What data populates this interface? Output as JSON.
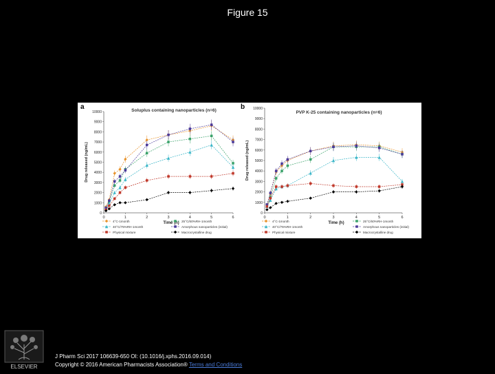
{
  "page": {
    "title": "Figure 15",
    "citation": "J Pharm Sci 2017 106639-650 OI: (10.1016/j.xphs.2016.09.014)",
    "copyright": "Copyright © 2016 American Pharmacists Association®",
    "terms_link": "Terms and Conditions",
    "publisher": "ELSEVIER"
  },
  "colors": {
    "orange": "#e8922a",
    "green": "#3aa26a",
    "teal": "#3ab6c8",
    "purple": "#4b3a9a",
    "red": "#c0392b",
    "black": "#000000"
  },
  "chart_data": [
    {
      "type": "line",
      "panel_label": "a",
      "title": "Soluplus containing nanoparticles (n=6)",
      "xlabel": "Time (h)",
      "ylabel": "Drug released (ng/mL)",
      "xlim": [
        0,
        6
      ],
      "ylim": [
        0,
        10000
      ],
      "xticks": [
        0,
        1,
        2,
        3,
        4,
        5,
        6
      ],
      "yticks": [
        0,
        1000,
        2000,
        3000,
        4000,
        5000,
        6000,
        7000,
        8000,
        9000,
        10000
      ],
      "x": [
        0.1,
        0.25,
        0.5,
        0.75,
        1,
        2,
        3,
        4,
        5,
        6
      ],
      "grid": false,
      "legend": "bottom",
      "series": [
        {
          "name": "4°C-1month",
          "color": "#e8922a",
          "marker": "diamond",
          "values": [
            600,
            1300,
            3900,
            4300,
            5300,
            7200,
            7700,
            8100,
            8600,
            7200
          ]
        },
        {
          "name": "25°C/60%RH-1month",
          "color": "#3aa26a",
          "marker": "square",
          "values": [
            500,
            1100,
            2700,
            3200,
            4300,
            5900,
            7000,
            7300,
            7600,
            4900
          ]
        },
        {
          "name": "40°C/75%RH-1month",
          "color": "#3ab6c8",
          "marker": "triangle",
          "values": [
            400,
            900,
            2000,
            2500,
            3300,
            4700,
            5400,
            6000,
            6700,
            4500
          ]
        },
        {
          "name": "Amorphous nanoparticles (initial)",
          "color": "#4b3a9a",
          "marker": "square",
          "values": [
            500,
            1200,
            3100,
            3600,
            4200,
            6700,
            7700,
            8300,
            8700,
            7000
          ]
        },
        {
          "name": "Physical mixture",
          "color": "#c0392b",
          "marker": "square",
          "values": [
            300,
            700,
            1400,
            2000,
            2500,
            3200,
            3600,
            3600,
            3600,
            3900
          ]
        },
        {
          "name": "Macrocrystalline drug",
          "color": "#000000",
          "marker": "diamond",
          "values": [
            200,
            400,
            800,
            1000,
            1000,
            1300,
            2000,
            2000,
            2200,
            2400
          ]
        }
      ]
    },
    {
      "type": "line",
      "panel_label": "b",
      "title": "PVP K-25 containing nanoparticles (n=6)",
      "xlabel": "Time (h)",
      "ylabel": "Drug released (ng/mL)",
      "xlim": [
        0,
        6
      ],
      "ylim": [
        0,
        10000
      ],
      "xticks": [
        0,
        1,
        2,
        3,
        4,
        5,
        6
      ],
      "yticks": [
        0,
        1000,
        2000,
        3000,
        4000,
        5000,
        6000,
        7000,
        8000,
        9000,
        10000
      ],
      "x": [
        0.1,
        0.25,
        0.5,
        0.75,
        1,
        2,
        3,
        4,
        5,
        6
      ],
      "grid": false,
      "legend": "bottom",
      "series": [
        {
          "name": "4°C-1month",
          "color": "#e8922a",
          "marker": "diamond",
          "values": [
            800,
            1800,
            3900,
            4500,
            5000,
            5900,
            6400,
            6500,
            6400,
            5800
          ]
        },
        {
          "name": "25°C/60%RH-1month",
          "color": "#3aa26a",
          "marker": "square",
          "values": [
            700,
            1500,
            3300,
            4000,
            4500,
            5100,
            6300,
            6300,
            6300,
            5600
          ]
        },
        {
          "name": "40°C/75%RH-1month",
          "color": "#3ab6c8",
          "marker": "triangle",
          "values": [
            600,
            1200,
            2300,
            2500,
            2600,
            3800,
            5000,
            5300,
            5300,
            3000
          ]
        },
        {
          "name": "Amorphous nanoparticles (initial)",
          "color": "#4b3a9a",
          "marker": "square",
          "values": [
            800,
            1900,
            4000,
            4700,
            5100,
            5900,
            6300,
            6400,
            6200,
            5600
          ]
        },
        {
          "name": "Physical mixture",
          "color": "#c0392b",
          "marker": "square",
          "values": [
            600,
            1400,
            2500,
            2500,
            2600,
            2800,
            2600,
            2500,
            2500,
            2700
          ]
        },
        {
          "name": "Macrocrystalline drug",
          "color": "#000000",
          "marker": "diamond",
          "values": [
            300,
            500,
            900,
            1000,
            1100,
            1400,
            2000,
            2000,
            2100,
            2500
          ]
        }
      ]
    }
  ]
}
